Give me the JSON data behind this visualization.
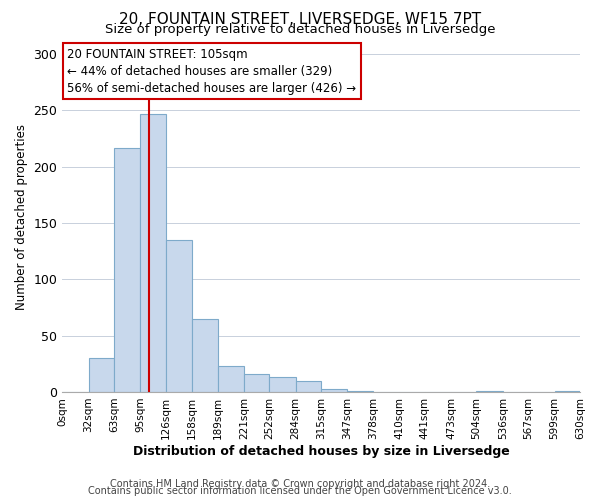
{
  "title": "20, FOUNTAIN STREET, LIVERSEDGE, WF15 7PT",
  "subtitle": "Size of property relative to detached houses in Liversedge",
  "xlabel": "Distribution of detached houses by size in Liversedge",
  "ylabel": "Number of detached properties",
  "bar_color": "#c8d8ec",
  "bar_edge_color": "#7eaaca",
  "background_color": "#ffffff",
  "grid_color": "#c8d0dc",
  "vline_x": 105,
  "vline_color": "#cc0000",
  "bin_edges": [
    0,
    32,
    63,
    95,
    126,
    158,
    189,
    221,
    252,
    284,
    315,
    347,
    378,
    410,
    441,
    473,
    504,
    536,
    567,
    599,
    630
  ],
  "bin_labels": [
    "0sqm",
    "32sqm",
    "63sqm",
    "95sqm",
    "126sqm",
    "158sqm",
    "189sqm",
    "221sqm",
    "252sqm",
    "284sqm",
    "315sqm",
    "347sqm",
    "378sqm",
    "410sqm",
    "441sqm",
    "473sqm",
    "504sqm",
    "536sqm",
    "567sqm",
    "599sqm",
    "630sqm"
  ],
  "counts": [
    0,
    30,
    216,
    247,
    135,
    65,
    23,
    16,
    13,
    10,
    3,
    1,
    0,
    0,
    0,
    0,
    1,
    0,
    0,
    1
  ],
  "ylim": [
    0,
    310
  ],
  "yticks": [
    0,
    50,
    100,
    150,
    200,
    250,
    300
  ],
  "annotation_line1": "20 FOUNTAIN STREET: 105sqm",
  "annotation_line2": "← 44% of detached houses are smaller (329)",
  "annotation_line3": "56% of semi-detached houses are larger (426) →",
  "annotation_box_color": "#ffffff",
  "annotation_box_edge": "#cc0000",
  "footer1": "Contains HM Land Registry data © Crown copyright and database right 2024.",
  "footer2": "Contains public sector information licensed under the Open Government Licence v3.0.",
  "title_fontsize": 11,
  "subtitle_fontsize": 9.5,
  "xlabel_fontsize": 9,
  "ylabel_fontsize": 8.5,
  "footer_fontsize": 7,
  "annot_fontsize": 8.5
}
